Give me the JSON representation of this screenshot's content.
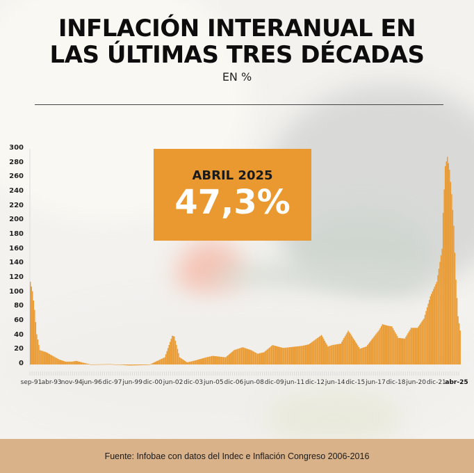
{
  "header": {
    "title_line1": "INFLACIÓN INTERANUAL EN",
    "title_line2": "LAS ÚLTIMAS TRES DÉCADAS",
    "subtitle": "EN %"
  },
  "callout": {
    "label": "ABRIL 2025",
    "value": "47,3%"
  },
  "footer": {
    "source": "Fuente: Infobae con datos del Indec e Inflación Congreso 2006-2016"
  },
  "colors": {
    "bar": "#e9992f",
    "callout_bg": "#e9992f",
    "footer_bg": "#d9b28a"
  },
  "chart_data": {
    "type": "bar",
    "title": "Inflación interanual en las últimas tres décadas",
    "subtitle": "En %",
    "xlabel": "",
    "ylabel": "%",
    "ylim": [
      0,
      300
    ],
    "yticks": [
      0,
      20,
      40,
      60,
      80,
      100,
      120,
      140,
      160,
      180,
      200,
      220,
      240,
      260,
      280,
      300
    ],
    "grid": false,
    "legend": null,
    "frequency": "monthly",
    "x_start": "sep-91",
    "x_end": "abr-25",
    "x_tick_labels": [
      "sep-91",
      "abr-93",
      "nov-94",
      "jun-96",
      "dic-97",
      "jun-99",
      "dic-00",
      "jun-02",
      "dic-03",
      "jun-05",
      "dic-06",
      "jun-08",
      "dic-09",
      "jun-11",
      "dic-12",
      "jun-14",
      "dic-15",
      "jun-17",
      "dic-18",
      "jun-20",
      "dic-21",
      "abr-25"
    ],
    "highlight": {
      "x": "abr-25",
      "value": 47.3,
      "label": "ABRIL 2025"
    },
    "keypoints": [
      {
        "x": "sep-91",
        "value": 115
      },
      {
        "x": "nov-91",
        "value": 102
      },
      {
        "x": "ene-92",
        "value": 76
      },
      {
        "x": "mar-92",
        "value": 42
      },
      {
        "x": "jun-92",
        "value": 20
      },
      {
        "x": "dic-92",
        "value": 17
      },
      {
        "x": "jun-93",
        "value": 12
      },
      {
        "x": "dic-93",
        "value": 7
      },
      {
        "x": "jun-94",
        "value": 4
      },
      {
        "x": "dic-94",
        "value": 4
      },
      {
        "x": "abr-95",
        "value": 5
      },
      {
        "x": "dic-95",
        "value": 2
      },
      {
        "x": "jun-96",
        "value": 0
      },
      {
        "x": "dic-97",
        "value": 0.5
      },
      {
        "x": "jun-99",
        "value": -1.5
      },
      {
        "x": "dic-00",
        "value": -0.7
      },
      {
        "x": "mar-02",
        "value": 10
      },
      {
        "x": "oct-02",
        "value": 40
      },
      {
        "x": "dic-02",
        "value": 39
      },
      {
        "x": "may-03",
        "value": 10
      },
      {
        "x": "dic-03",
        "value": 3
      },
      {
        "x": "jun-04",
        "value": 5
      },
      {
        "x": "jun-05",
        "value": 10
      },
      {
        "x": "dic-05",
        "value": 12
      },
      {
        "x": "dic-06",
        "value": 10
      },
      {
        "x": "ago-07",
        "value": 20
      },
      {
        "x": "abr-08",
        "value": 24
      },
      {
        "x": "dic-08",
        "value": 20
      },
      {
        "x": "jun-09",
        "value": 15
      },
      {
        "x": "dic-09",
        "value": 17
      },
      {
        "x": "ago-10",
        "value": 27
      },
      {
        "x": "jun-11",
        "value": 23
      },
      {
        "x": "dic-12",
        "value": 26
      },
      {
        "x": "jun-13",
        "value": 28
      },
      {
        "x": "jun-14",
        "value": 41
      },
      {
        "x": "dic-14",
        "value": 25
      },
      {
        "x": "abr-15",
        "value": 27
      },
      {
        "x": "dic-15",
        "value": 29
      },
      {
        "x": "jul-16",
        "value": 47
      },
      {
        "x": "sep-16",
        "value": 43
      },
      {
        "x": "jun-17",
        "value": 22
      },
      {
        "x": "dic-17",
        "value": 25
      },
      {
        "x": "dic-18",
        "value": 48
      },
      {
        "x": "mar-19",
        "value": 56
      },
      {
        "x": "ago-19",
        "value": 54
      },
      {
        "x": "dic-19",
        "value": 53
      },
      {
        "x": "jun-20",
        "value": 37
      },
      {
        "x": "dic-20",
        "value": 36
      },
      {
        "x": "jun-21",
        "value": 51
      },
      {
        "x": "dic-21",
        "value": 51
      },
      {
        "x": "jun-22",
        "value": 64
      },
      {
        "x": "dic-22",
        "value": 95
      },
      {
        "x": "jun-23",
        "value": 115
      },
      {
        "x": "nov-23",
        "value": 161
      },
      {
        "x": "dic-23",
        "value": 211
      },
      {
        "x": "feb-24",
        "value": 276
      },
      {
        "x": "abr-24",
        "value": 289
      },
      {
        "x": "jun-24",
        "value": 271
      },
      {
        "x": "ago-24",
        "value": 237
      },
      {
        "x": "oct-24",
        "value": 193
      },
      {
        "x": "dic-24",
        "value": 118
      },
      {
        "x": "feb-25",
        "value": 67
      },
      {
        "x": "abr-25",
        "value": 47.3
      }
    ]
  }
}
